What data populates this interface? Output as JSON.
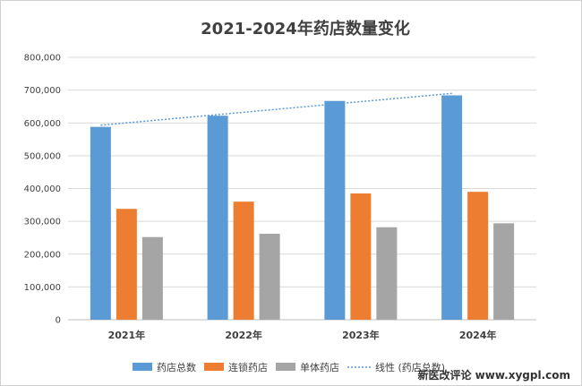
{
  "chart_data": {
    "type": "bar",
    "title": "2021-2024年药店数量变化",
    "categories": [
      "2021年",
      "2022年",
      "2023年",
      "2024年"
    ],
    "series": [
      {
        "name": "药店总数",
        "values": [
          588000,
          622000,
          667000,
          684000
        ],
        "color": "#5b9bd5"
      },
      {
        "name": "连锁药店",
        "values": [
          338000,
          360000,
          385000,
          390000
        ],
        "color": "#ed7d31"
      },
      {
        "name": "单体药店",
        "values": [
          252000,
          262000,
          282000,
          294000
        ],
        "color": "#a5a5a5"
      }
    ],
    "trendline": {
      "name": "线性 (药店总数)",
      "of_series": "药店总数",
      "type": "linear",
      "start": 593000,
      "end": 690000,
      "color": "#5b9bd5",
      "style": "dotted"
    },
    "ylim": [
      0,
      800000
    ],
    "yticks": [
      0,
      100000,
      200000,
      300000,
      400000,
      500000,
      600000,
      700000,
      800000
    ],
    "ytick_labels": [
      "0",
      "100,000",
      "200,000",
      "300,000",
      "400,000",
      "500,000",
      "600,000",
      "700,000",
      "800,000"
    ],
    "xlabel": "",
    "ylabel": "",
    "grid": true,
    "legend_position": "bottom"
  },
  "watermark": "新医改评论 www.xygpl.com"
}
